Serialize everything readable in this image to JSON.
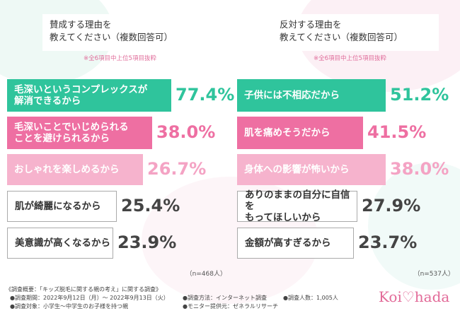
{
  "panels": [
    {
      "title": [
        "賛成する理由を",
        "教えてください（複数回答可）"
      ],
      "note": "※全6項目中上位5項目抜粋",
      "n": "（n=468人）",
      "items": [
        {
          "label": [
            "毛深いというコンプレックスが",
            "解消できるから"
          ],
          "value": "77.4%"
        },
        {
          "label": [
            "毛深いことでいじめられる",
            "ことを避けられるから"
          ],
          "value": "38.0%"
        },
        {
          "label": [
            "おしゃれを楽しめるから"
          ],
          "value": "26.7%"
        },
        {
          "label": [
            "肌が綺麗になるから"
          ],
          "value": "25.4%"
        },
        {
          "label": [
            "美意識が高くなるから"
          ],
          "value": "23.9%"
        }
      ]
    },
    {
      "title": [
        "反対する理由を",
        "教えてください（複数回答可）"
      ],
      "note": "※全6項目中上位5項目抜粋",
      "n": "（n=537人）",
      "items": [
        {
          "label": [
            "子供には不相応だから"
          ],
          "value": "51.2%"
        },
        {
          "label": [
            "肌を痛めそうだから"
          ],
          "value": "41.5%"
        },
        {
          "label": [
            "身体への影響が怖いから"
          ],
          "value": "38.0%"
        },
        {
          "label": [
            "ありのままの自分に自信を",
            "もってほしいから"
          ],
          "value": "27.9%"
        },
        {
          "label": [
            "金額が高すぎるから"
          ],
          "value": "23.7%"
        }
      ]
    }
  ],
  "footer": {
    "heading": "《調査概要：「キッズ脱毛に関する親の考え」に関する調査》",
    "lines": [
      "●調査期間：2022年9月12日（月）～ 2022年9月13日（火）",
      "●調査対象：小学生～中学生のお子様を持つ親",
      "●調査方法：インターネット調査",
      "●モニター提供元：ゼネラルリサーチ",
      "●調査人数：1,005人"
    ],
    "logo": "Koi♡hada"
  }
}
